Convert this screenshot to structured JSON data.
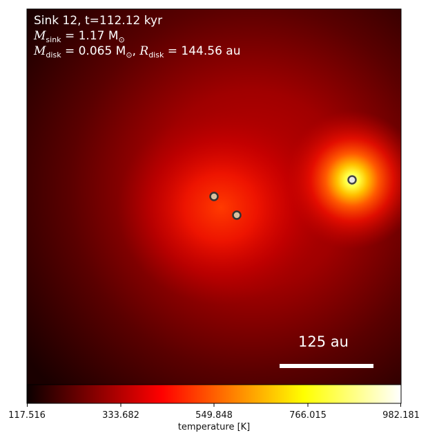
{
  "annotation": {
    "line1": "Sink 12, t=112.12 kyr",
    "mass_symbol": "M",
    "mass_sub": "sink",
    "mass_value": " = 1.17 M",
    "mass_unit_sub": "⊙",
    "disk_mass_sub": "disk",
    "disk_mass_value": " = 0.065 M",
    "disk_sep": ", ",
    "radius_symbol": "R",
    "radius_sub": "disk",
    "radius_value": " = 144.56 au"
  },
  "scale_bar": {
    "label": "125 au"
  },
  "colorbar": {
    "label": "temperature [K]",
    "ticks": [
      "117.516",
      "333.682",
      "549.848",
      "766.015",
      "982.181"
    ],
    "min": 117.516,
    "max": 982.181,
    "colormap": "hot"
  },
  "sinks": [
    {
      "name": "sink-left"
    },
    {
      "name": "sink-lower"
    },
    {
      "name": "sink-right"
    }
  ]
}
